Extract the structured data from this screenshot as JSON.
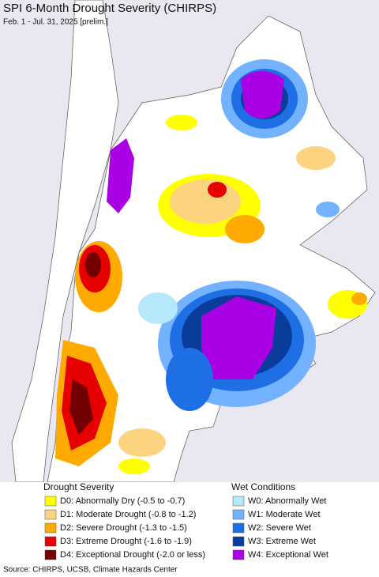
{
  "title": "SPI 6-Month Drought Severity (CHIRPS)",
  "subtitle": "Feb. 1 - Jul. 31, 2025 [prelim.]",
  "legend": {
    "drought": {
      "title": "Drought Severity",
      "items": [
        {
          "label": "D0: Abnormally Dry (-0.5 to -0.7)",
          "color": "#ffff00"
        },
        {
          "label": "D1: Moderate Drought (-0.8 to -1.2)",
          "color": "#fcd37f"
        },
        {
          "label": "D2: Severe Drought (-1.3 to -1.5)",
          "color": "#ffaa00"
        },
        {
          "label": "D3: Extreme Drought (-1.6 to -1.9)",
          "color": "#e60000"
        },
        {
          "label": "D4: Exceptional Drought (-2.0 or less)",
          "color": "#730000"
        }
      ]
    },
    "wet": {
      "title": "Wet Conditions",
      "items": [
        {
          "label": "W0: Abnormally Wet",
          "color": "#b4e8fa"
        },
        {
          "label": "W1: Moderate Wet",
          "color": "#73b2ff"
        },
        {
          "label": "W2: Severe Wet",
          "color": "#1e6ee6"
        },
        {
          "label": "W3: Extreme Wet",
          "color": "#0a3c9c"
        },
        {
          "label": "W4: Exceptional Wet",
          "color": "#aa00e6"
        }
      ]
    }
  },
  "source": "Source: CHIRPS, UCSB, Climate Hazards Center"
}
